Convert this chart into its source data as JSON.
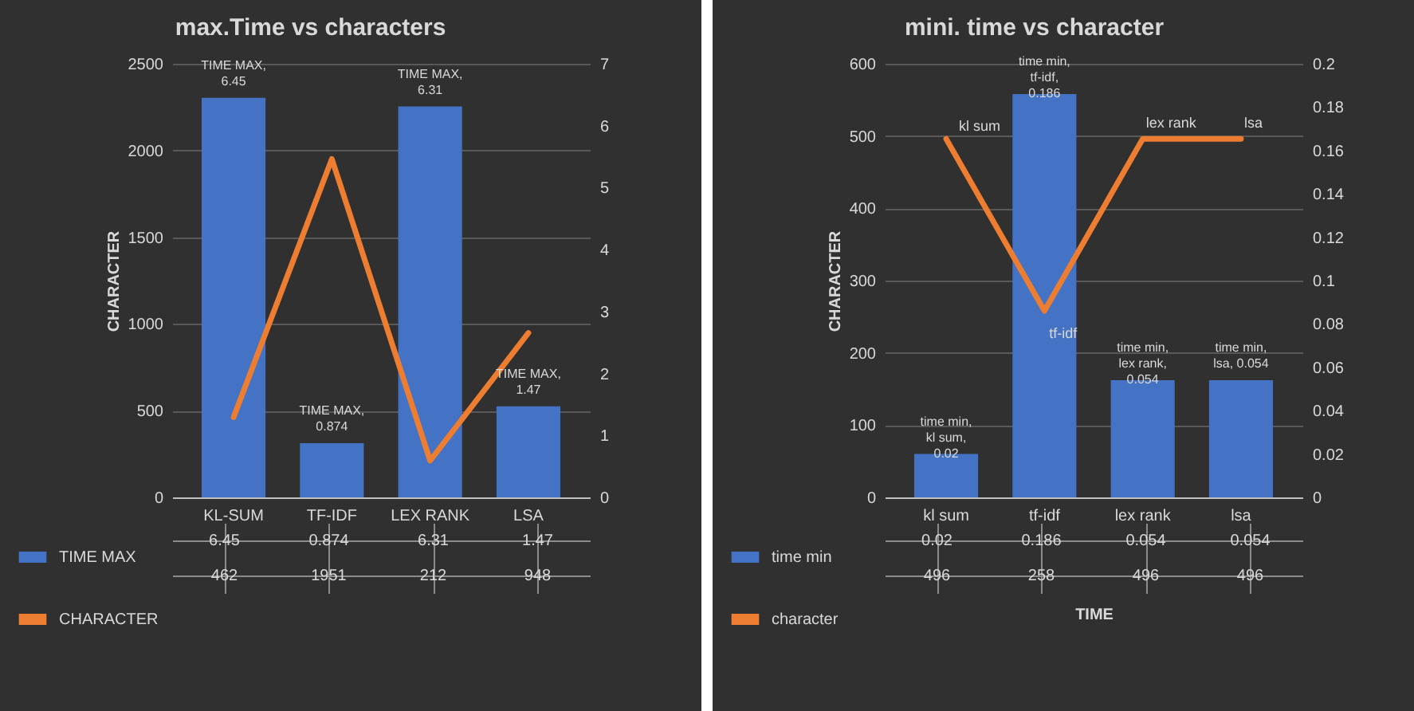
{
  "chart_data": [
    {
      "type": "bar",
      "title": "max.Time vs characters",
      "ylabel": "CHARACTER",
      "categories": [
        "KL-SUM",
        "TF-IDF",
        "LEX RANK",
        "LSA"
      ],
      "series": [
        {
          "name": "TIME MAX",
          "type": "bar",
          "axis": "y2",
          "color": "#4472c4",
          "values": [
            6.45,
            0.874,
            6.31,
            1.47
          ]
        },
        {
          "name": "CHARACTER",
          "type": "line",
          "color": "#ed7d31",
          "values": [
            462,
            1951,
            212,
            948
          ]
        }
      ],
      "annotations": [
        "TIME MAX, 6.45",
        "TIME MAX, 0.874",
        "TIME MAX, 6.31",
        "TIME MAX, 1.47"
      ],
      "ylim": [
        0,
        2500
      ],
      "yticks": [
        0,
        500,
        1000,
        1500,
        2000,
        2500
      ],
      "y2lim": [
        0,
        7
      ],
      "y2ticks": [
        0,
        1,
        2,
        3,
        4,
        5,
        6,
        7
      ],
      "grid": "y",
      "legend": "bottom left",
      "data_labels": true
    },
    {
      "type": "bar",
      "title": "mini.  time vs character",
      "ylabel": "CHARACTER",
      "xlabel": "TIME",
      "categories": [
        "kl sum",
        "tf-idf",
        "lex rank",
        "lsa"
      ],
      "series": [
        {
          "name": "time min",
          "type": "bar",
          "axis": "y2",
          "color": "#4472c4",
          "values": [
            0.02,
            0.186,
            0.054,
            0.054
          ]
        },
        {
          "name": "character",
          "type": "line",
          "color": "#ed7d31",
          "values": [
            496,
            258,
            496,
            496
          ]
        }
      ],
      "annotations": [
        "time min, kl sum, 0.02",
        "time min, tf-idf, 0.186",
        "time min, lex rank, 0.054",
        "time min, lsa, 0.054",
        {
          "text": "kl sum",
          "x": "kl sum",
          "y": 496
        },
        {
          "text": "tf-idf",
          "x": "tf-idf",
          "y": 258
        },
        {
          "text": "lex rank",
          "x": "lex rank",
          "y": 496
        },
        {
          "text": "lsa",
          "x": "lsa",
          "y": 496
        }
      ],
      "ylim": [
        0,
        600
      ],
      "yticks": [
        0,
        100,
        200,
        300,
        400,
        500,
        600
      ],
      "y2lim": [
        0,
        0.2
      ],
      "y2ticks": [
        0,
        0.02,
        0.04,
        0.06,
        0.08,
        0.1,
        0.12,
        0.14,
        0.16,
        0.18,
        0.2
      ],
      "grid": "y",
      "legend": "bottom left",
      "data_labels": true
    }
  ]
}
